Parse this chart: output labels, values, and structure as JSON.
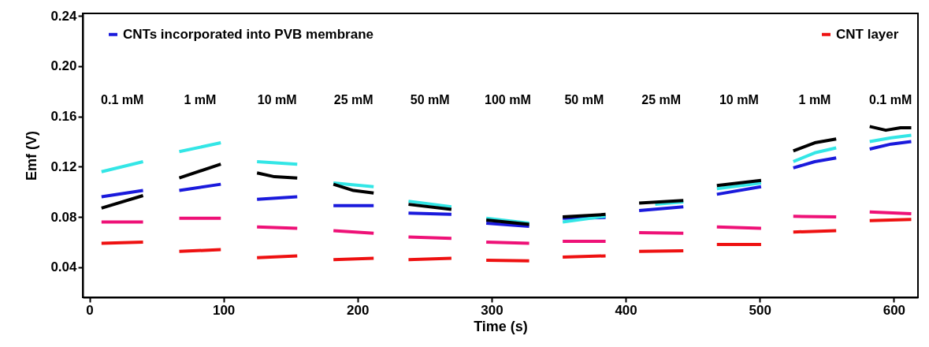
{
  "chart_data": {
    "type": "line",
    "xlabel": "Time (s)",
    "ylabel": "Emf  (V)",
    "xlim": [
      -5,
      618
    ],
    "ylim": [
      0.016,
      0.242
    ],
    "xticks": [
      0,
      100,
      200,
      300,
      400,
      500,
      600
    ],
    "yticks": [
      0.04,
      0.08,
      0.12,
      0.16,
      {
        "value": 0.2,
        "label": "0.20"
      },
      0.24
    ],
    "grid": false,
    "legend": "top",
    "line_style": "solid",
    "marker": "none",
    "series": [
      {
        "name": "CNTs incorporated into PVB membrane",
        "color": "#1a1adc",
        "x": [
          9,
          40,
          53,
          67,
          98,
          110,
          125,
          155,
          168,
          182,
          212,
          225,
          238,
          270,
          283,
          296,
          328,
          340,
          353,
          385,
          397,
          410,
          443,
          455,
          468,
          501,
          513,
          525,
          541,
          557,
          570,
          582,
          598,
          613
        ],
        "values": [
          0.096,
          0.101,
          null,
          0.101,
          0.106,
          null,
          0.094,
          0.096,
          null,
          0.089,
          0.089,
          null,
          0.083,
          0.082,
          null,
          0.075,
          0.0725,
          null,
          0.079,
          0.0795,
          null,
          0.085,
          0.088,
          null,
          0.098,
          0.104,
          null,
          0.119,
          0.124,
          0.127,
          null,
          0.134,
          0.138,
          0.14
        ]
      },
      {
        "color": "#33e6e6",
        "x": [
          9,
          40,
          53,
          67,
          98,
          110,
          125,
          155,
          168,
          182,
          212,
          225,
          238,
          270,
          283,
          296,
          328,
          340,
          353,
          385,
          397,
          422,
          443,
          455,
          468,
          501,
          513,
          525,
          541,
          557,
          570,
          582,
          598,
          613
        ],
        "values": [
          0.116,
          0.124,
          null,
          0.132,
          0.139,
          null,
          0.124,
          0.122,
          null,
          0.107,
          0.104,
          null,
          0.0925,
          0.088,
          null,
          0.079,
          0.075,
          null,
          0.076,
          0.0805,
          null,
          0.09,
          0.092,
          null,
          0.1025,
          0.107,
          null,
          0.124,
          0.131,
          0.135,
          null,
          0.14,
          0.143,
          0.145
        ]
      },
      {
        "color": "#000000",
        "x": [
          9,
          40,
          53,
          67,
          98,
          110,
          125,
          138,
          155,
          168,
          182,
          197,
          212,
          225,
          238,
          270,
          283,
          296,
          328,
          340,
          353,
          385,
          397,
          410,
          443,
          455,
          468,
          501,
          513,
          525,
          541,
          557,
          570,
          582,
          594,
          605,
          613
        ],
        "values": [
          0.087,
          0.097,
          null,
          0.111,
          0.122,
          null,
          0.115,
          0.112,
          0.111,
          null,
          0.106,
          0.101,
          0.099,
          null,
          0.09,
          0.086,
          null,
          0.0775,
          0.074,
          null,
          0.08,
          0.082,
          null,
          0.091,
          0.093,
          null,
          0.105,
          0.109,
          null,
          0.1325,
          0.139,
          0.142,
          null,
          0.152,
          0.149,
          0.151,
          0.151
        ]
      },
      {
        "name": "CNT layer",
        "color": "#ee1111",
        "x": [
          9,
          40,
          53,
          67,
          98,
          110,
          125,
          155,
          168,
          182,
          212,
          225,
          238,
          270,
          283,
          296,
          328,
          340,
          353,
          385,
          397,
          410,
          443,
          455,
          468,
          501,
          513,
          525,
          557,
          570,
          582,
          613
        ],
        "values": [
          0.059,
          0.06,
          null,
          0.0525,
          0.054,
          null,
          0.0475,
          0.049,
          null,
          0.046,
          0.047,
          null,
          0.046,
          0.047,
          null,
          0.0455,
          0.045,
          null,
          0.048,
          0.049,
          null,
          0.0525,
          0.053,
          null,
          0.058,
          0.058,
          null,
          0.068,
          0.069,
          null,
          0.077,
          0.078
        ]
      },
      {
        "color": "#ee1177",
        "x": [
          9,
          40,
          53,
          67,
          98,
          110,
          125,
          155,
          168,
          182,
          212,
          225,
          238,
          270,
          283,
          296,
          328,
          340,
          353,
          385,
          397,
          410,
          443,
          455,
          468,
          501,
          513,
          525,
          557,
          570,
          582,
          613
        ],
        "values": [
          0.076,
          0.076,
          null,
          0.079,
          0.079,
          null,
          0.072,
          0.071,
          null,
          0.069,
          0.067,
          null,
          0.064,
          0.063,
          null,
          0.06,
          0.059,
          null,
          0.0605,
          0.0605,
          null,
          0.0675,
          0.067,
          null,
          0.072,
          0.071,
          null,
          0.0805,
          0.08,
          null,
          0.084,
          0.0825
        ]
      }
    ],
    "annotations": [
      "0.1 mM",
      "1 mM",
      "10 mM",
      "25 mM",
      "50 mM",
      "100 mM",
      "50 mM",
      "25 mM",
      "10 mM",
      "1 mM",
      "0.1 mM"
    ]
  }
}
